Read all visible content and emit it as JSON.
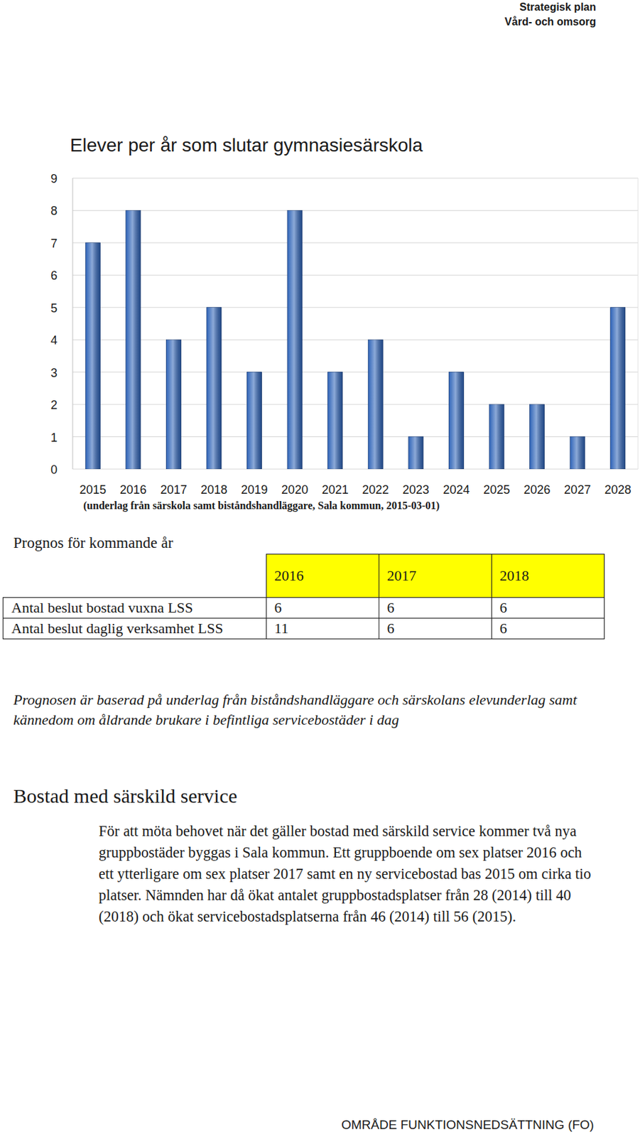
{
  "header": {
    "title": "Strategisk plan",
    "subtitle": "Vård- och omsorg"
  },
  "chart_data": {
    "type": "bar",
    "title": "Elever per år som slutar gymnasiesärskola",
    "categories": [
      "2015",
      "2016",
      "2017",
      "2018",
      "2019",
      "2020",
      "2021",
      "2022",
      "2023",
      "2024",
      "2025",
      "2026",
      "2027",
      "2028"
    ],
    "values": [
      7,
      8,
      4,
      5,
      3,
      8,
      3,
      4,
      1,
      3,
      2,
      2,
      1,
      5
    ],
    "color": "#2f64b8",
    "ylim": [
      0,
      9
    ],
    "yticks": [
      0,
      1,
      2,
      3,
      4,
      5,
      6,
      7,
      8,
      9
    ],
    "grid": true
  },
  "chart_source": "(underlag från särskola samt biståndshandläggare, Sala kommun, 2015-03-01)",
  "forecast": {
    "title": "Prognos för kommande år",
    "columns": [
      "2016",
      "2017",
      "2018"
    ],
    "rows": [
      {
        "label": "Antal beslut bostad vuxna LSS",
        "values": [
          6,
          6,
          6
        ]
      },
      {
        "label": "Antal beslut daglig verksamhet LSS",
        "values": [
          11,
          6,
          6
        ]
      }
    ],
    "note": "Prognosen är baserad på underlag från biståndshandläggare och särskolans elevunderlag samt kännedom om åldrande brukare i befintliga servicebostäder i dag"
  },
  "section": {
    "heading": "Bostad med särskild service",
    "text": "För att möta behovet när det gäller bostad med särskild service kommer två nya gruppbostäder byggas i Sala kommun. Ett gruppboende om sex platser 2016 och ett ytterligare om sex platser 2017 samt en ny servicebostad bas 2015 om cirka tio platser. Nämnden har då ökat antalet gruppbostadsplatser från 28 (2014) till 40 (2018) och ökat servicebostadsplatserna från 46 (2014) till 56 (2015)."
  },
  "footer": "OMRÅDE FUNKTIONSNEDSÄTTNING (FO)"
}
